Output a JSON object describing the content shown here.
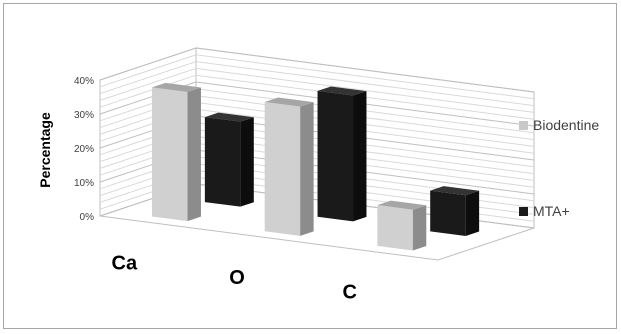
{
  "chart_data": {
    "type": "bar",
    "style": "3d-clustered-column",
    "categories": [
      "Ca",
      "O",
      "C"
    ],
    "series": [
      {
        "name": "Biodentine",
        "values": [
          38,
          38,
          12
        ],
        "color": "#c8c8c8"
      },
      {
        "name": "MTA+",
        "values": [
          25,
          37,
          12
        ],
        "color": "#1a1a1a"
      }
    ],
    "ylabel": "Percentage",
    "xlabel": "",
    "ylim": [
      0,
      40
    ],
    "yticks": [
      "0%",
      "10%",
      "20%",
      "30%",
      "40%"
    ],
    "grid": true,
    "legend_position": "right"
  }
}
